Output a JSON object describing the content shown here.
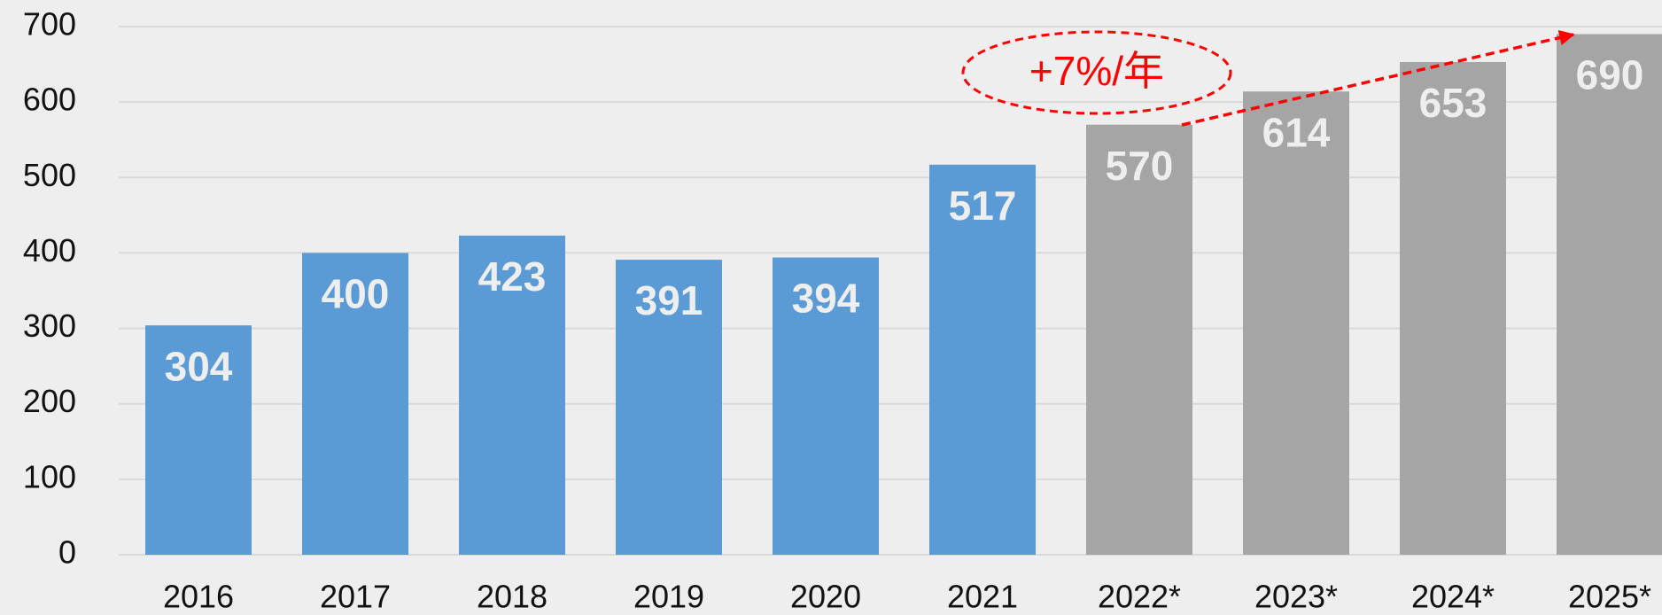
{
  "chart_data": {
    "type": "bar",
    "categories": [
      "2016",
      "2017",
      "2018",
      "2019",
      "2020",
      "2021",
      "2022*",
      "2023*",
      "2024*",
      "2025*"
    ],
    "values": [
      304,
      400,
      423,
      391,
      394,
      517,
      570,
      614,
      653,
      690
    ],
    "colors": [
      "#5b9bd5",
      "#5b9bd5",
      "#5b9bd5",
      "#5b9bd5",
      "#5b9bd5",
      "#5b9bd5",
      "#a5a5a5",
      "#a5a5a5",
      "#a5a5a5",
      "#a5a5a5"
    ],
    "ylim": [
      0,
      700
    ],
    "yticks": [
      0,
      100,
      200,
      300,
      400,
      500,
      600,
      700
    ],
    "grid": true,
    "annotation": "+7%/年"
  }
}
